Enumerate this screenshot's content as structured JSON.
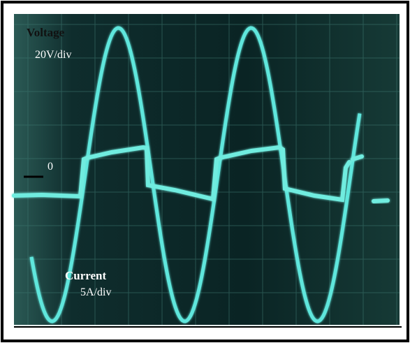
{
  "labels": {
    "voltage": "Voltage",
    "voltage_scale": "20V/div",
    "zero": "0",
    "current": "Current",
    "current_scale": "5A/div"
  }
}
